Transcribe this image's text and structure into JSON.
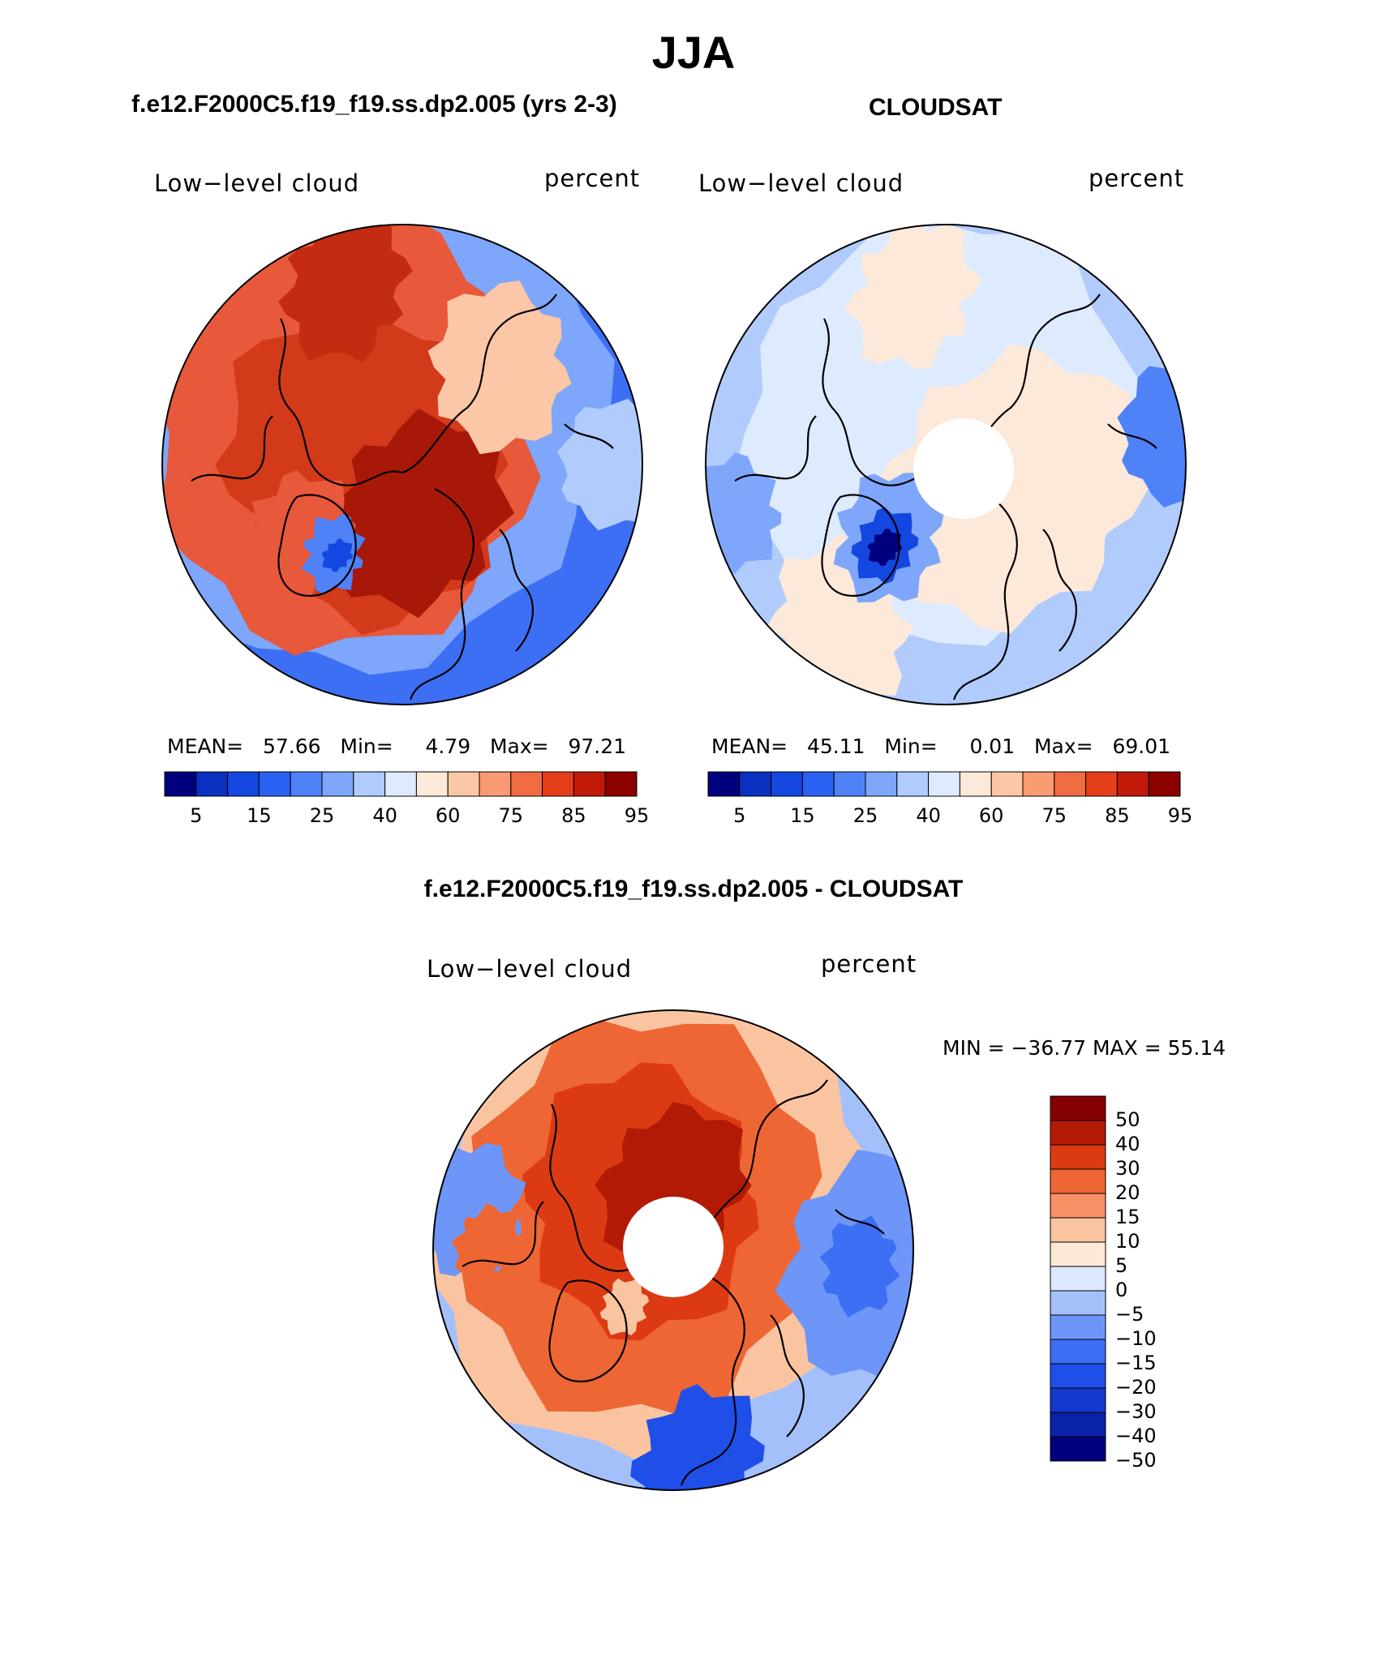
{
  "page_title": "JJA",
  "colors": {
    "scale": [
      "#00007f",
      "#0b2fbf",
      "#1447e0",
      "#2a61f2",
      "#4f81f7",
      "#7ea6fa",
      "#b0cbfc",
      "#deeafd",
      "#fde9d9",
      "#fcc7a6",
      "#f99a72",
      "#f16b43",
      "#e43e1a",
      "#c21a0a",
      "#8c0000"
    ],
    "diff_scale": [
      "#00007f",
      "#0a22a8",
      "#1437cc",
      "#1f4fe8",
      "#3c6ff3",
      "#6d96f8",
      "#a4c0fb",
      "#dce8fd",
      "#fde8d6",
      "#fbc4a1",
      "#f79166",
      "#ee6633",
      "#dc3a12",
      "#b21a06",
      "#870000"
    ],
    "coast": "#000000"
  },
  "panels": [
    {
      "id": "model",
      "heading": "f.e12.F2000C5.f19_f19.ss.dp2.005 (yrs 2-3)",
      "variable": "Low−level cloud",
      "units": "percent",
      "stats": {
        "mean_label": "MEAN=",
        "mean": "57.66",
        "min_label": "Min=",
        "min": "4.79",
        "max_label": "Max=",
        "max": "97.21"
      },
      "colorbar_ticks": [
        "5",
        "15",
        "25",
        "40",
        "60",
        "75",
        "85",
        "95"
      ],
      "fields": {
        "outer": "#e8583a",
        "mid": "#f0866a",
        "inner": "#c42c12",
        "pole_hole": false
      }
    },
    {
      "id": "obs",
      "heading": "CLOUDSAT",
      "variable": "Low−level cloud",
      "units": "percent",
      "stats": {
        "mean_label": "MEAN=",
        "mean": "45.11",
        "min_label": "Min=",
        "min": "0.01",
        "max_label": "Max=",
        "max": "69.01"
      },
      "colorbar_ticks": [
        "5",
        "15",
        "25",
        "40",
        "60",
        "75",
        "85",
        "95"
      ],
      "fields": {
        "outer": "#b9d1fb",
        "mid": "#fde3d0",
        "inner": "#dde9fd",
        "pole_hole": true
      }
    }
  ],
  "difference": {
    "heading": "f.e12.F2000C5.f19_f19.ss.dp2.005 - CLOUDSAT",
    "variable": "Low−level cloud",
    "units": "percent",
    "minmax": "MIN = −36.77 MAX =   55.14",
    "colorbar_ticks": [
      "50",
      "40",
      "30",
      "20",
      "15",
      "10",
      "5",
      "0",
      "−5",
      "−10",
      "−15",
      "−20",
      "−30",
      "−40",
      "−50"
    ]
  }
}
